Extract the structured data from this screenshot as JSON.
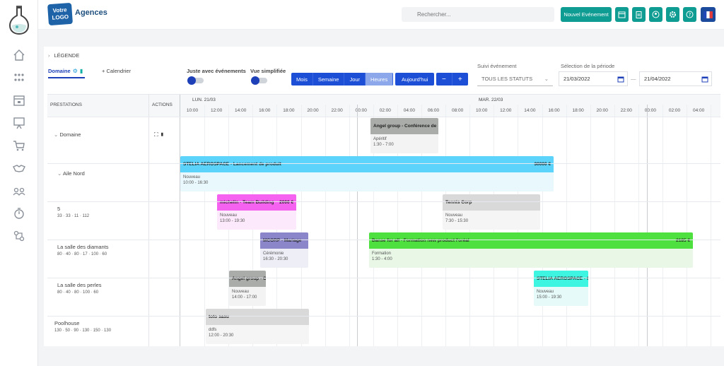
{
  "header": {
    "brand": "Agences",
    "logo_text": "Votre LOGO",
    "search_placeholder": "Rechercher...",
    "new_event_label": "Nouvel Evénement",
    "language_flag": "fr-flag-icon"
  },
  "toolbar": {
    "legend_label": "LÉGENDE",
    "tab_domaine": "Domaine",
    "tab_calendrier": "+ Calendrier",
    "only_events_label": "Juste avec événements",
    "simplified_label": "Vue simplifiée",
    "views": [
      "Mois",
      "Semaine",
      "Jour",
      "Heures"
    ],
    "active_view": "Heures",
    "today_label": "Aujourd'hui",
    "zoom_out": "−",
    "zoom_in": "+",
    "status_label": "Suivi événement",
    "status_value": "TOUS LES STATUTS",
    "period_label": "Sélection de la période",
    "date_from": "21/03/2022",
    "date_sep": "—",
    "date_to": "21/04/2022"
  },
  "grid": {
    "col_prestations": "PRESTATIONS",
    "col_actions": "ACTIONS",
    "day1": "LUN. 21/03",
    "day2": "MAR. 22/03",
    "ticks": [
      "10:00",
      "12:00",
      "14:00",
      "16:00",
      "18:00",
      "20:00",
      "22:00",
      "00:00",
      "02:00",
      "04:00",
      "06:00",
      "08:00",
      "10:00",
      "12:00",
      "14:00",
      "16:00",
      "18:00",
      "20:00",
      "22:00",
      "00:00",
      "02:00",
      "04:00"
    ]
  },
  "rows": [
    {
      "name": "Domaine",
      "amenities": ""
    },
    {
      "name": "Aile Nord",
      "amenities": ""
    },
    {
      "name": "5",
      "amenities": "33 · 33 · 11 · 112"
    },
    {
      "name": "La salle des diamants",
      "amenities": "80 · 40 · 80 · 17 · 100 · 60"
    },
    {
      "name": "La salle des perles",
      "amenities": "80 · 40 · 80 · 100 · 60"
    },
    {
      "name": "Poolhouse",
      "amenities": "130 · 50 · 90 · 130 · 150 · 130"
    }
  ],
  "events": [
    {
      "title": "Angel group - Conférence de",
      "price": "",
      "status": "Apéritif",
      "time": "1:30 - 7:00",
      "head": "#a9aca9",
      "body": "#f3f3f3"
    },
    {
      "title": "STELIA AEROSPACE - Lancement de produit",
      "price": "30000 €",
      "status": "Nouveau",
      "time": "10:00 - 16:30",
      "head": "#5bd3fb",
      "body": "#e9f8fd"
    },
    {
      "title": "michelin - Team Building",
      "price": "2000 €",
      "status": "Nouveau",
      "time": "13:00 - 19:30",
      "head": "#f562f0",
      "body": "#fce9fb"
    },
    {
      "title": "Tennis Corp",
      "price": "",
      "status": "Nouveau",
      "time": "7:30 - 15:30",
      "head": "#d9d9d9",
      "body": "#f5f5f5"
    },
    {
      "title": "MCORP - Mariage",
      "price": "",
      "status": "Cérémonie",
      "time": "16:30 - 20:30",
      "head": "#8a86c9",
      "body": "#eeeef7"
    },
    {
      "title": "Danse for all - Formation new product l'oréal",
      "price": "2185 €",
      "status": "Formation",
      "time": "1:30 - 4:00",
      "head": "#4ee03f",
      "body": "#e8f7e6"
    },
    {
      "title": "Angel group - C",
      "price": "",
      "status": "Nouveau",
      "time": "14:00 - 17:00",
      "head": "#a9aca9",
      "body": "#f3f3f3"
    },
    {
      "title": "STELIA AEROSPACE - C",
      "price": "",
      "status": "Nouveau",
      "time": "15:00 - 19:30",
      "head": "#3ef5e2",
      "body": "#e6fbf9"
    },
    {
      "title": "toto sasu",
      "price": "",
      "status": "ddfs",
      "time": "12:00 - 20:30",
      "head": "#d9d9d9",
      "body": "#f5f5f5"
    }
  ]
}
